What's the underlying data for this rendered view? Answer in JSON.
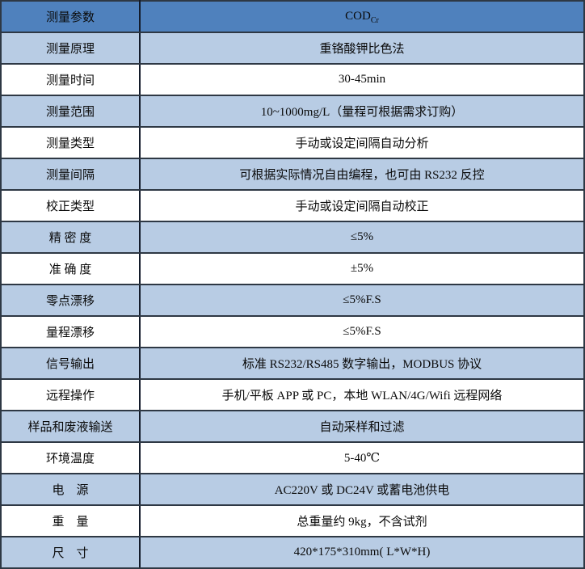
{
  "table": {
    "header": {
      "param": "测量参数",
      "value_main": "COD",
      "value_sub": "Cr"
    },
    "rows": [
      {
        "param": "测量原理",
        "value": "重铬酸钾比色法",
        "shade": "light"
      },
      {
        "param": "测量时间",
        "value": "30-45min",
        "shade": "white"
      },
      {
        "param": "测量范围",
        "value": "10~1000mg/L（量程可根据需求订购）",
        "shade": "light"
      },
      {
        "param": "测量类型",
        "value": "手动或设定间隔自动分析",
        "shade": "white"
      },
      {
        "param": "测量间隔",
        "value": "可根据实际情况自由编程，也可由 RS232 反控",
        "shade": "light"
      },
      {
        "param": "校正类型",
        "value": "手动或设定间隔自动校正",
        "shade": "white"
      },
      {
        "param": "精 密 度",
        "value": "≤5%",
        "shade": "light"
      },
      {
        "param": "准 确 度",
        "value": "±5%",
        "shade": "white"
      },
      {
        "param": "零点漂移",
        "value": "≤5%F.S",
        "shade": "light"
      },
      {
        "param": "量程漂移",
        "value": "≤5%F.S",
        "shade": "white"
      },
      {
        "param": "信号输出",
        "value": "标准 RS232/RS485 数字输出，MODBUS 协议",
        "shade": "light"
      },
      {
        "param": "远程操作",
        "value": "手机/平板 APP 或 PC，本地 WLAN/4G/Wifi 远程网络",
        "shade": "white"
      },
      {
        "param": "样品和废液输送",
        "value": "自动采样和过滤",
        "shade": "light"
      },
      {
        "param": "环境温度",
        "value": "5-40℃",
        "shade": "white"
      },
      {
        "param": "电　源",
        "value": "AC220V 或 DC24V 或蓄电池供电",
        "shade": "light"
      },
      {
        "param": "重　量",
        "value": "总重量约 9kg，不含试剂",
        "shade": "white"
      },
      {
        "param": "尺　寸",
        "value": "420*175*310mm( L*W*H)",
        "shade": "light"
      }
    ],
    "colors": {
      "header_bg": "#4f81bd",
      "light_bg": "#b8cce4",
      "white_bg": "#ffffff",
      "border": "#2e3844",
      "divider": "#131b2a",
      "text": "#0a0a0a"
    }
  }
}
